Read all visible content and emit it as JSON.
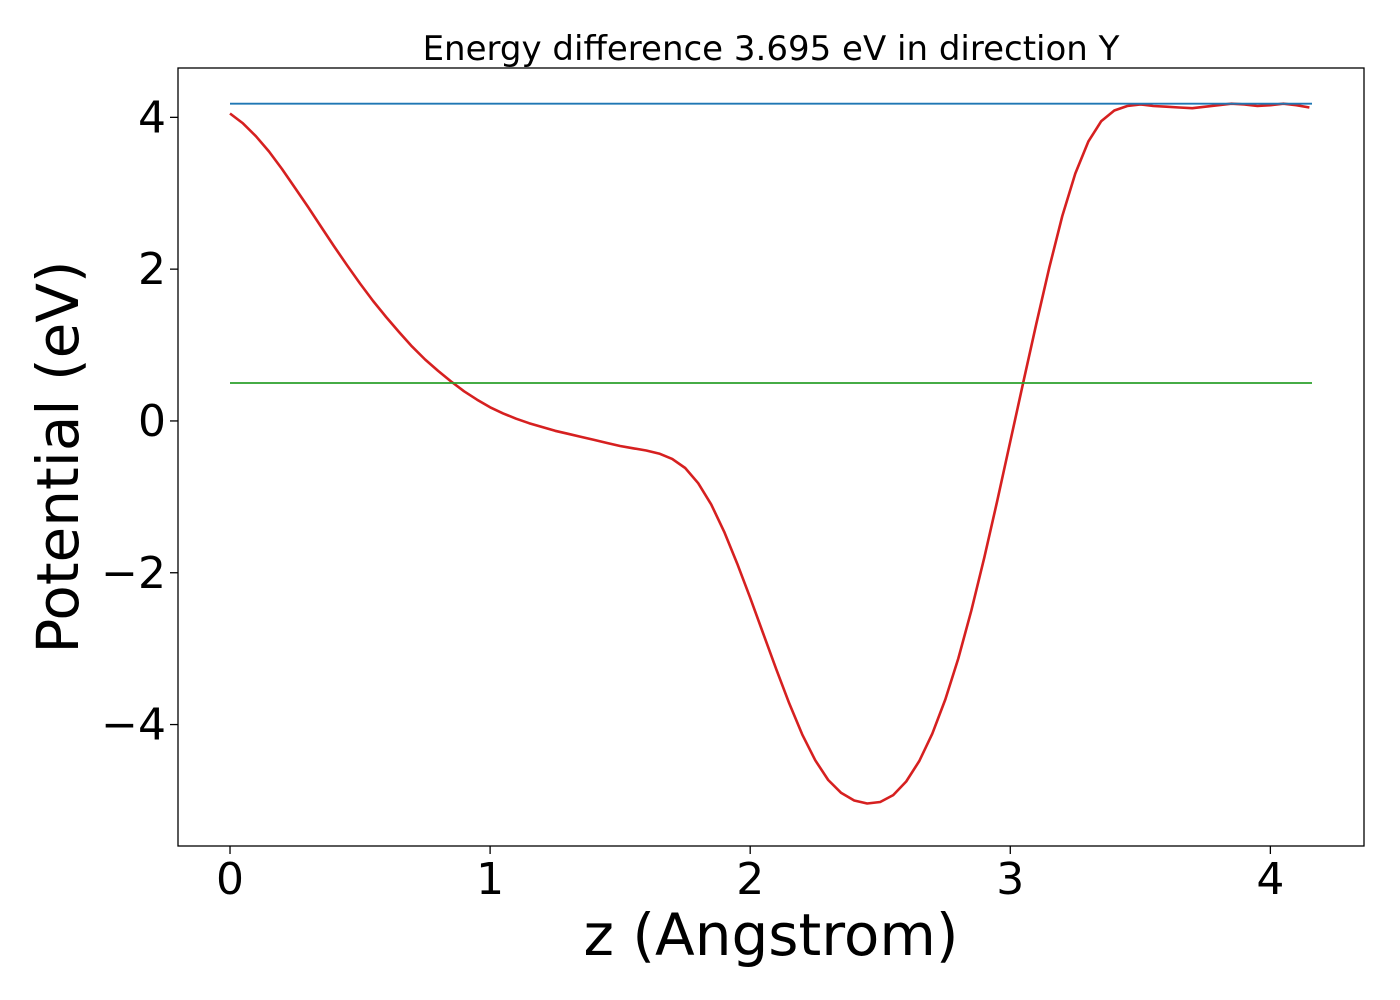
{
  "chart_data": {
    "type": "line",
    "title": "Energy difference 3.695 eV in direction Y",
    "xlabel": "z (Angstrom)",
    "ylabel": "Potential (eV)",
    "xlim": [
      -0.2,
      4.36
    ],
    "ylim": [
      -5.6,
      4.65
    ],
    "xticks": [
      0,
      1,
      2,
      3,
      4
    ],
    "xtick_labels": [
      "0",
      "1",
      "2",
      "3",
      "4"
    ],
    "yticks": [
      -4,
      -2,
      0,
      2,
      4
    ],
    "ytick_labels": [
      "−4",
      "−2",
      "0",
      "2",
      "4"
    ],
    "grid": false,
    "series": [
      {
        "color": "#d62020",
        "x": [
          0,
          0.05,
          0.1,
          0.15,
          0.2,
          0.25,
          0.3,
          0.35,
          0.4,
          0.45,
          0.5,
          0.55,
          0.6,
          0.65,
          0.7,
          0.75,
          0.8,
          0.85,
          0.9,
          0.95,
          1.0,
          1.05,
          1.1,
          1.15,
          1.2,
          1.25,
          1.3,
          1.35,
          1.4,
          1.45,
          1.5,
          1.55,
          1.6,
          1.65,
          1.7,
          1.75,
          1.8,
          1.85,
          1.9,
          1.95,
          2.0,
          2.05,
          2.1,
          2.15,
          2.2,
          2.25,
          2.3,
          2.35,
          2.4,
          2.45,
          2.5,
          2.55,
          2.6,
          2.65,
          2.7,
          2.75,
          2.8,
          2.85,
          2.9,
          2.95,
          3.0,
          3.05,
          3.1,
          3.15,
          3.2,
          3.25,
          3.3,
          3.35,
          3.4,
          3.45,
          3.5,
          3.55,
          3.6,
          3.65,
          3.7,
          3.75,
          3.8,
          3.85,
          3.9,
          3.95,
          4.0,
          4.05,
          4.1,
          4.15
        ],
        "y": [
          4.05,
          3.92,
          3.75,
          3.55,
          3.32,
          3.07,
          2.82,
          2.56,
          2.3,
          2.05,
          1.81,
          1.58,
          1.37,
          1.17,
          0.98,
          0.81,
          0.66,
          0.52,
          0.39,
          0.28,
          0.18,
          0.1,
          0.03,
          -0.03,
          -0.08,
          -0.13,
          -0.17,
          -0.21,
          -0.25,
          -0.29,
          -0.33,
          -0.36,
          -0.39,
          -0.43,
          -0.5,
          -0.62,
          -0.82,
          -1.1,
          -1.46,
          -1.88,
          -2.33,
          -2.8,
          -3.27,
          -3.72,
          -4.13,
          -4.47,
          -4.73,
          -4.9,
          -5.0,
          -5.04,
          -5.02,
          -4.93,
          -4.75,
          -4.48,
          -4.12,
          -3.67,
          -3.13,
          -2.5,
          -1.8,
          -1.05,
          -0.27,
          0.51,
          1.28,
          2.02,
          2.7,
          3.26,
          3.68,
          3.95,
          4.09,
          4.15,
          4.17,
          4.15,
          4.14,
          4.13,
          4.12,
          4.14,
          4.16,
          4.18,
          4.17,
          4.15,
          4.16,
          4.18,
          4.16,
          4.13
        ]
      },
      {
        "color": "#1f77b4",
        "x": [
          0,
          4.16
        ],
        "y": [
          4.18,
          4.18
        ]
      },
      {
        "color": "#2ca02c",
        "x": [
          0,
          4.16
        ],
        "y": [
          0.5,
          0.5
        ]
      }
    ]
  }
}
